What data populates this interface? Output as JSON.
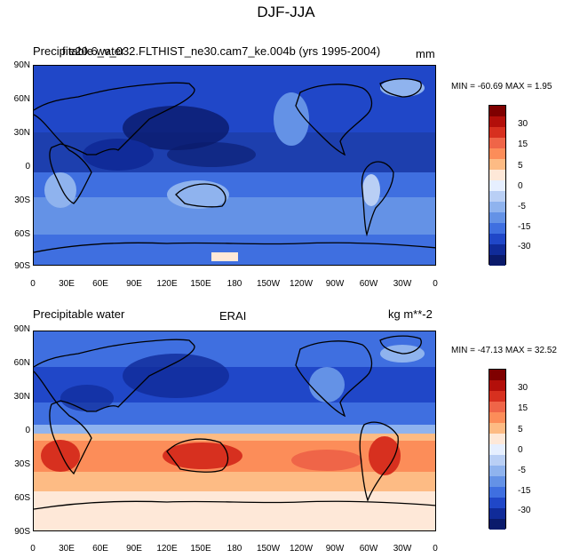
{
  "main_title": "DJF-JJA",
  "panels": [
    {
      "left_label": "Precipitable water",
      "overlap_label": "f.e20.6_v_032.FLTHIST_ne30.cam7_ke.004b (yrs 1995-2004)",
      "right_label": "mm",
      "stats": "MIN = -60.69 MAX =   1.95",
      "y_ticks": [
        "90N",
        "60N",
        "30N",
        "0",
        "30S",
        "60S",
        "90S"
      ],
      "x_ticks": [
        "0",
        "30E",
        "60E",
        "90E",
        "120E",
        "150E",
        "180",
        "150W",
        "120W",
        "90W",
        "60W",
        "30W",
        "0"
      ]
    },
    {
      "left_label": "Precipitable water",
      "center_label": "ERAI",
      "right_label": "kg m**-2",
      "stats": "MIN = -47.13 MAX =  32.52",
      "y_ticks": [
        "90N",
        "60N",
        "30N",
        "0",
        "30S",
        "60S",
        "90S"
      ],
      "x_ticks": [
        "0",
        "30E",
        "60E",
        "90E",
        "120E",
        "150E",
        "180",
        "150W",
        "120W",
        "90W",
        "60W",
        "30W",
        "0"
      ]
    }
  ],
  "colorbar": {
    "labels": [
      "30",
      "15",
      "5",
      "0",
      "-5",
      "-15",
      "-30"
    ],
    "colors": [
      "#7f0000",
      "#b30f0a",
      "#d7301f",
      "#ef6548",
      "#fc8d59",
      "#fdbb84",
      "#fee8d8",
      "#e6efff",
      "#b9cff5",
      "#8fb3ee",
      "#6492e6",
      "#3f6fe0",
      "#2047c8",
      "#102b99",
      "#0a1a6b"
    ]
  }
}
